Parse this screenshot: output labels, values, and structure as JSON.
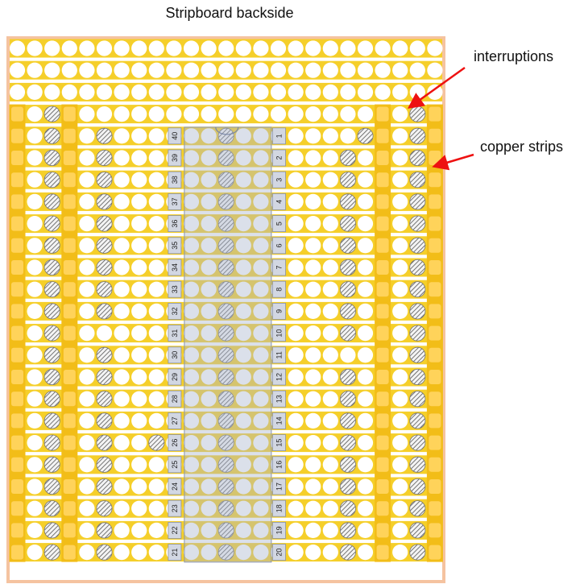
{
  "title": "Stripboard backside",
  "annotations": {
    "interruptions": "interruptions",
    "copper_strips": "copper strips"
  },
  "colors": {
    "board_border": "#f5c3a0",
    "copper": "#f5cf2a",
    "bus": "#f2bd18",
    "hole": "#ffffff",
    "arrow": "#ee1111",
    "chip": "#a9b4cc",
    "pin_label_bg": "#d2d7e2"
  },
  "chip": {
    "right_pins": [
      "1",
      "2",
      "3",
      "4",
      "5",
      "6",
      "7",
      "8",
      "9",
      "10",
      "11",
      "12",
      "13",
      "14",
      "15",
      "16",
      "17",
      "18",
      "19",
      "20"
    ],
    "left_pins": [
      "40",
      "39",
      "38",
      "37",
      "36",
      "35",
      "34",
      "33",
      "32",
      "31",
      "30",
      "29",
      "28",
      "27",
      "26",
      "25",
      "24",
      "23",
      "22",
      "21"
    ]
  }
}
